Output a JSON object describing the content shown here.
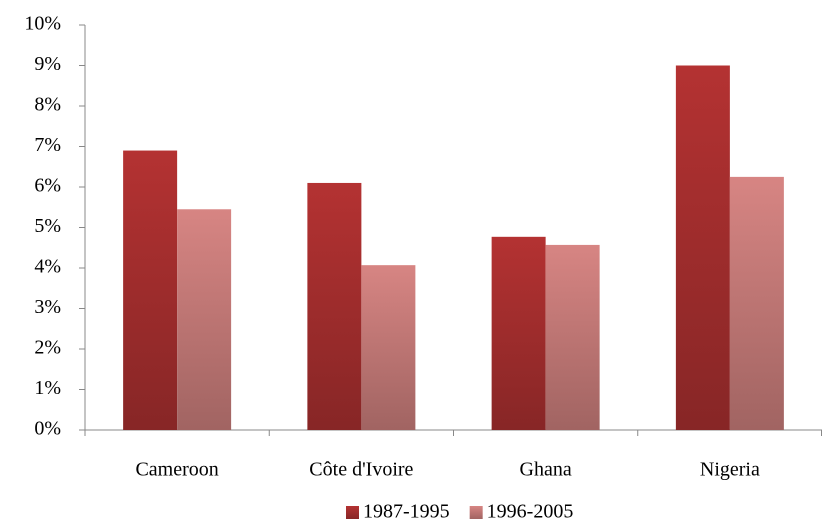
{
  "chart_data": {
    "type": "bar",
    "categories": [
      "Cameroon",
      "Côte d'Ivoire",
      "Ghana",
      "Nigeria"
    ],
    "series": [
      {
        "name": "1987-1995",
        "color": "#b43232",
        "values": [
          6.9,
          6.1,
          4.77,
          9.0
        ]
      },
      {
        "name": "1996-2005",
        "color": "#d78583",
        "values": [
          5.45,
          4.07,
          4.57,
          6.25
        ]
      }
    ],
    "ylim": [
      0,
      10
    ],
    "yticks": [
      {
        "value": 0,
        "label": "0%"
      },
      {
        "value": 1,
        "label": "1%"
      },
      {
        "value": 2,
        "label": "2%"
      },
      {
        "value": 3,
        "label": "3%"
      },
      {
        "value": 4,
        "label": "4%"
      },
      {
        "value": 5,
        "label": "5%"
      },
      {
        "value": 6,
        "label": "6%"
      },
      {
        "value": 7,
        "label": "7%"
      },
      {
        "value": 8,
        "label": "8%"
      },
      {
        "value": 9,
        "label": "9%"
      },
      {
        "value": 10,
        "label": "10%"
      }
    ],
    "grid": false,
    "legend": "bottom"
  }
}
